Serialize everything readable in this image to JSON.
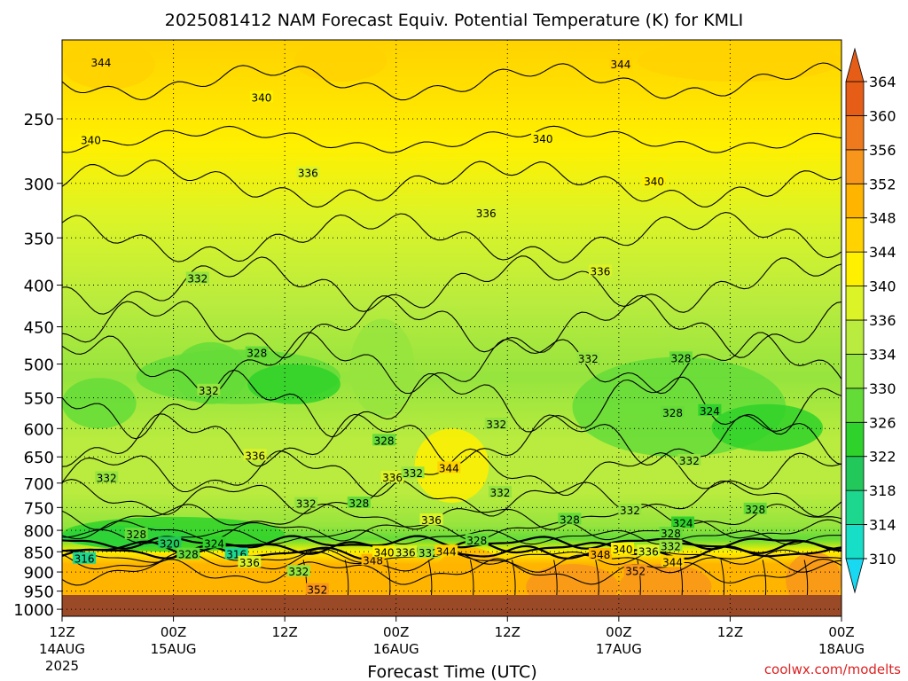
{
  "chart_data": {
    "type": "heatmap",
    "title": "2025081412 NAM Forecast Equiv. Potential Temperature (K) for KMLI",
    "xlabel": "Forecast Time (UTC)",
    "ylabel": "",
    "credit": "coolwx.com/modelts",
    "x_ticks": [
      {
        "hour": 0,
        "top": "12Z",
        "mid": "14AUG",
        "bot": "2025"
      },
      {
        "hour": 12,
        "top": "00Z",
        "mid": "15AUG",
        "bot": ""
      },
      {
        "hour": 24,
        "top": "12Z",
        "mid": "",
        "bot": ""
      },
      {
        "hour": 36,
        "top": "00Z",
        "mid": "16AUG",
        "bot": ""
      },
      {
        "hour": 48,
        "top": "12Z",
        "mid": "",
        "bot": ""
      },
      {
        "hour": 60,
        "top": "00Z",
        "mid": "17AUG",
        "bot": ""
      },
      {
        "hour": 72,
        "top": "12Z",
        "mid": "",
        "bot": ""
      },
      {
        "hour": 84,
        "top": "00Z",
        "mid": "18AUG",
        "bot": ""
      }
    ],
    "xlim": [
      0,
      84
    ],
    "y_ticks": [
      250,
      300,
      350,
      400,
      450,
      500,
      550,
      600,
      650,
      700,
      750,
      800,
      850,
      900,
      950,
      1000
    ],
    "ylim_hpa": [
      200,
      1020
    ],
    "y_scale": "log",
    "surface_pressure_hpa": 985,
    "grid": true,
    "colorbar": {
      "levels": [
        310,
        314,
        318,
        322,
        326,
        330,
        334,
        336,
        340,
        344,
        348,
        352,
        356,
        360,
        364
      ],
      "colors": [
        "#19d9f2",
        "#17dfc7",
        "#1dd78f",
        "#22c95a",
        "#2fd22a",
        "#64dc38",
        "#96e43e",
        "#b9ec3e",
        "#dcf427",
        "#fff000",
        "#ffd200",
        "#ffb500",
        "#f8961b",
        "#ee7a1d",
        "#e65d18"
      ]
    },
    "contour_labels": [
      {
        "h": 4.2,
        "p": 213,
        "v": "344"
      },
      {
        "h": 3.1,
        "p": 265,
        "v": "340"
      },
      {
        "h": 21.5,
        "p": 235,
        "v": "340"
      },
      {
        "h": 26.5,
        "p": 291,
        "v": "336"
      },
      {
        "h": 14.6,
        "p": 392,
        "v": "332"
      },
      {
        "h": 21.0,
        "p": 484,
        "v": "328"
      },
      {
        "h": 15.8,
        "p": 538,
        "v": "332"
      },
      {
        "h": 20.8,
        "p": 647,
        "v": "336"
      },
      {
        "h": 4.8,
        "p": 689,
        "v": "332"
      },
      {
        "h": 35.6,
        "p": 688,
        "v": "336"
      },
      {
        "h": 37.8,
        "p": 680,
        "v": "332"
      },
      {
        "h": 34.7,
        "p": 620,
        "v": "328"
      },
      {
        "h": 41.7,
        "p": 670,
        "v": "344"
      },
      {
        "h": 26.3,
        "p": 741,
        "v": "332"
      },
      {
        "h": 32.0,
        "p": 740,
        "v": "328"
      },
      {
        "h": 39.8,
        "p": 776,
        "v": "336"
      },
      {
        "h": 47.2,
        "p": 718,
        "v": "332"
      },
      {
        "h": 46.8,
        "p": 592,
        "v": "332"
      },
      {
        "h": 45.7,
        "p": 326,
        "v": "336"
      },
      {
        "h": 51.8,
        "p": 264,
        "v": "340"
      },
      {
        "h": 60.2,
        "p": 214,
        "v": "344"
      },
      {
        "h": 63.8,
        "p": 298,
        "v": "340"
      },
      {
        "h": 58.0,
        "p": 384,
        "v": "336"
      },
      {
        "h": 56.7,
        "p": 492,
        "v": "332"
      },
      {
        "h": 66.7,
        "p": 491,
        "v": "328"
      },
      {
        "h": 65.8,
        "p": 573,
        "v": "328"
      },
      {
        "h": 69.8,
        "p": 570,
        "v": "324"
      },
      {
        "h": 67.6,
        "p": 656,
        "v": "332"
      },
      {
        "h": 74.7,
        "p": 753,
        "v": "328"
      },
      {
        "h": 61.2,
        "p": 755,
        "v": "332"
      },
      {
        "h": 54.7,
        "p": 775,
        "v": "328"
      },
      {
        "h": 66.9,
        "p": 783,
        "v": "324"
      },
      {
        "h": 65.6,
        "p": 806,
        "v": "328"
      },
      {
        "h": 44.7,
        "p": 822,
        "v": "328"
      },
      {
        "h": 8.0,
        "p": 808,
        "v": "328"
      },
      {
        "h": 11.6,
        "p": 829,
        "v": "320"
      },
      {
        "h": 16.4,
        "p": 829,
        "v": "324"
      },
      {
        "h": 2.4,
        "p": 866,
        "v": "316"
      },
      {
        "h": 13.6,
        "p": 855,
        "v": "328"
      },
      {
        "h": 18.8,
        "p": 855,
        "v": "316"
      },
      {
        "h": 20.2,
        "p": 875,
        "v": "336"
      },
      {
        "h": 25.5,
        "p": 898,
        "v": "332"
      },
      {
        "h": 27.5,
        "p": 945,
        "v": "352"
      },
      {
        "h": 33.5,
        "p": 870,
        "v": "348"
      },
      {
        "h": 34.7,
        "p": 850,
        "v": "340"
      },
      {
        "h": 37.0,
        "p": 850,
        "v": "336"
      },
      {
        "h": 39.5,
        "p": 852,
        "v": "332"
      },
      {
        "h": 41.4,
        "p": 848,
        "v": "344"
      },
      {
        "h": 58.0,
        "p": 856,
        "v": "348"
      },
      {
        "h": 60.4,
        "p": 843,
        "v": "340"
      },
      {
        "h": 63.2,
        "p": 848,
        "v": "336"
      },
      {
        "h": 65.6,
        "p": 836,
        "v": "332"
      },
      {
        "h": 65.8,
        "p": 874,
        "v": "344"
      },
      {
        "h": 61.8,
        "p": 896,
        "v": "352"
      }
    ]
  }
}
